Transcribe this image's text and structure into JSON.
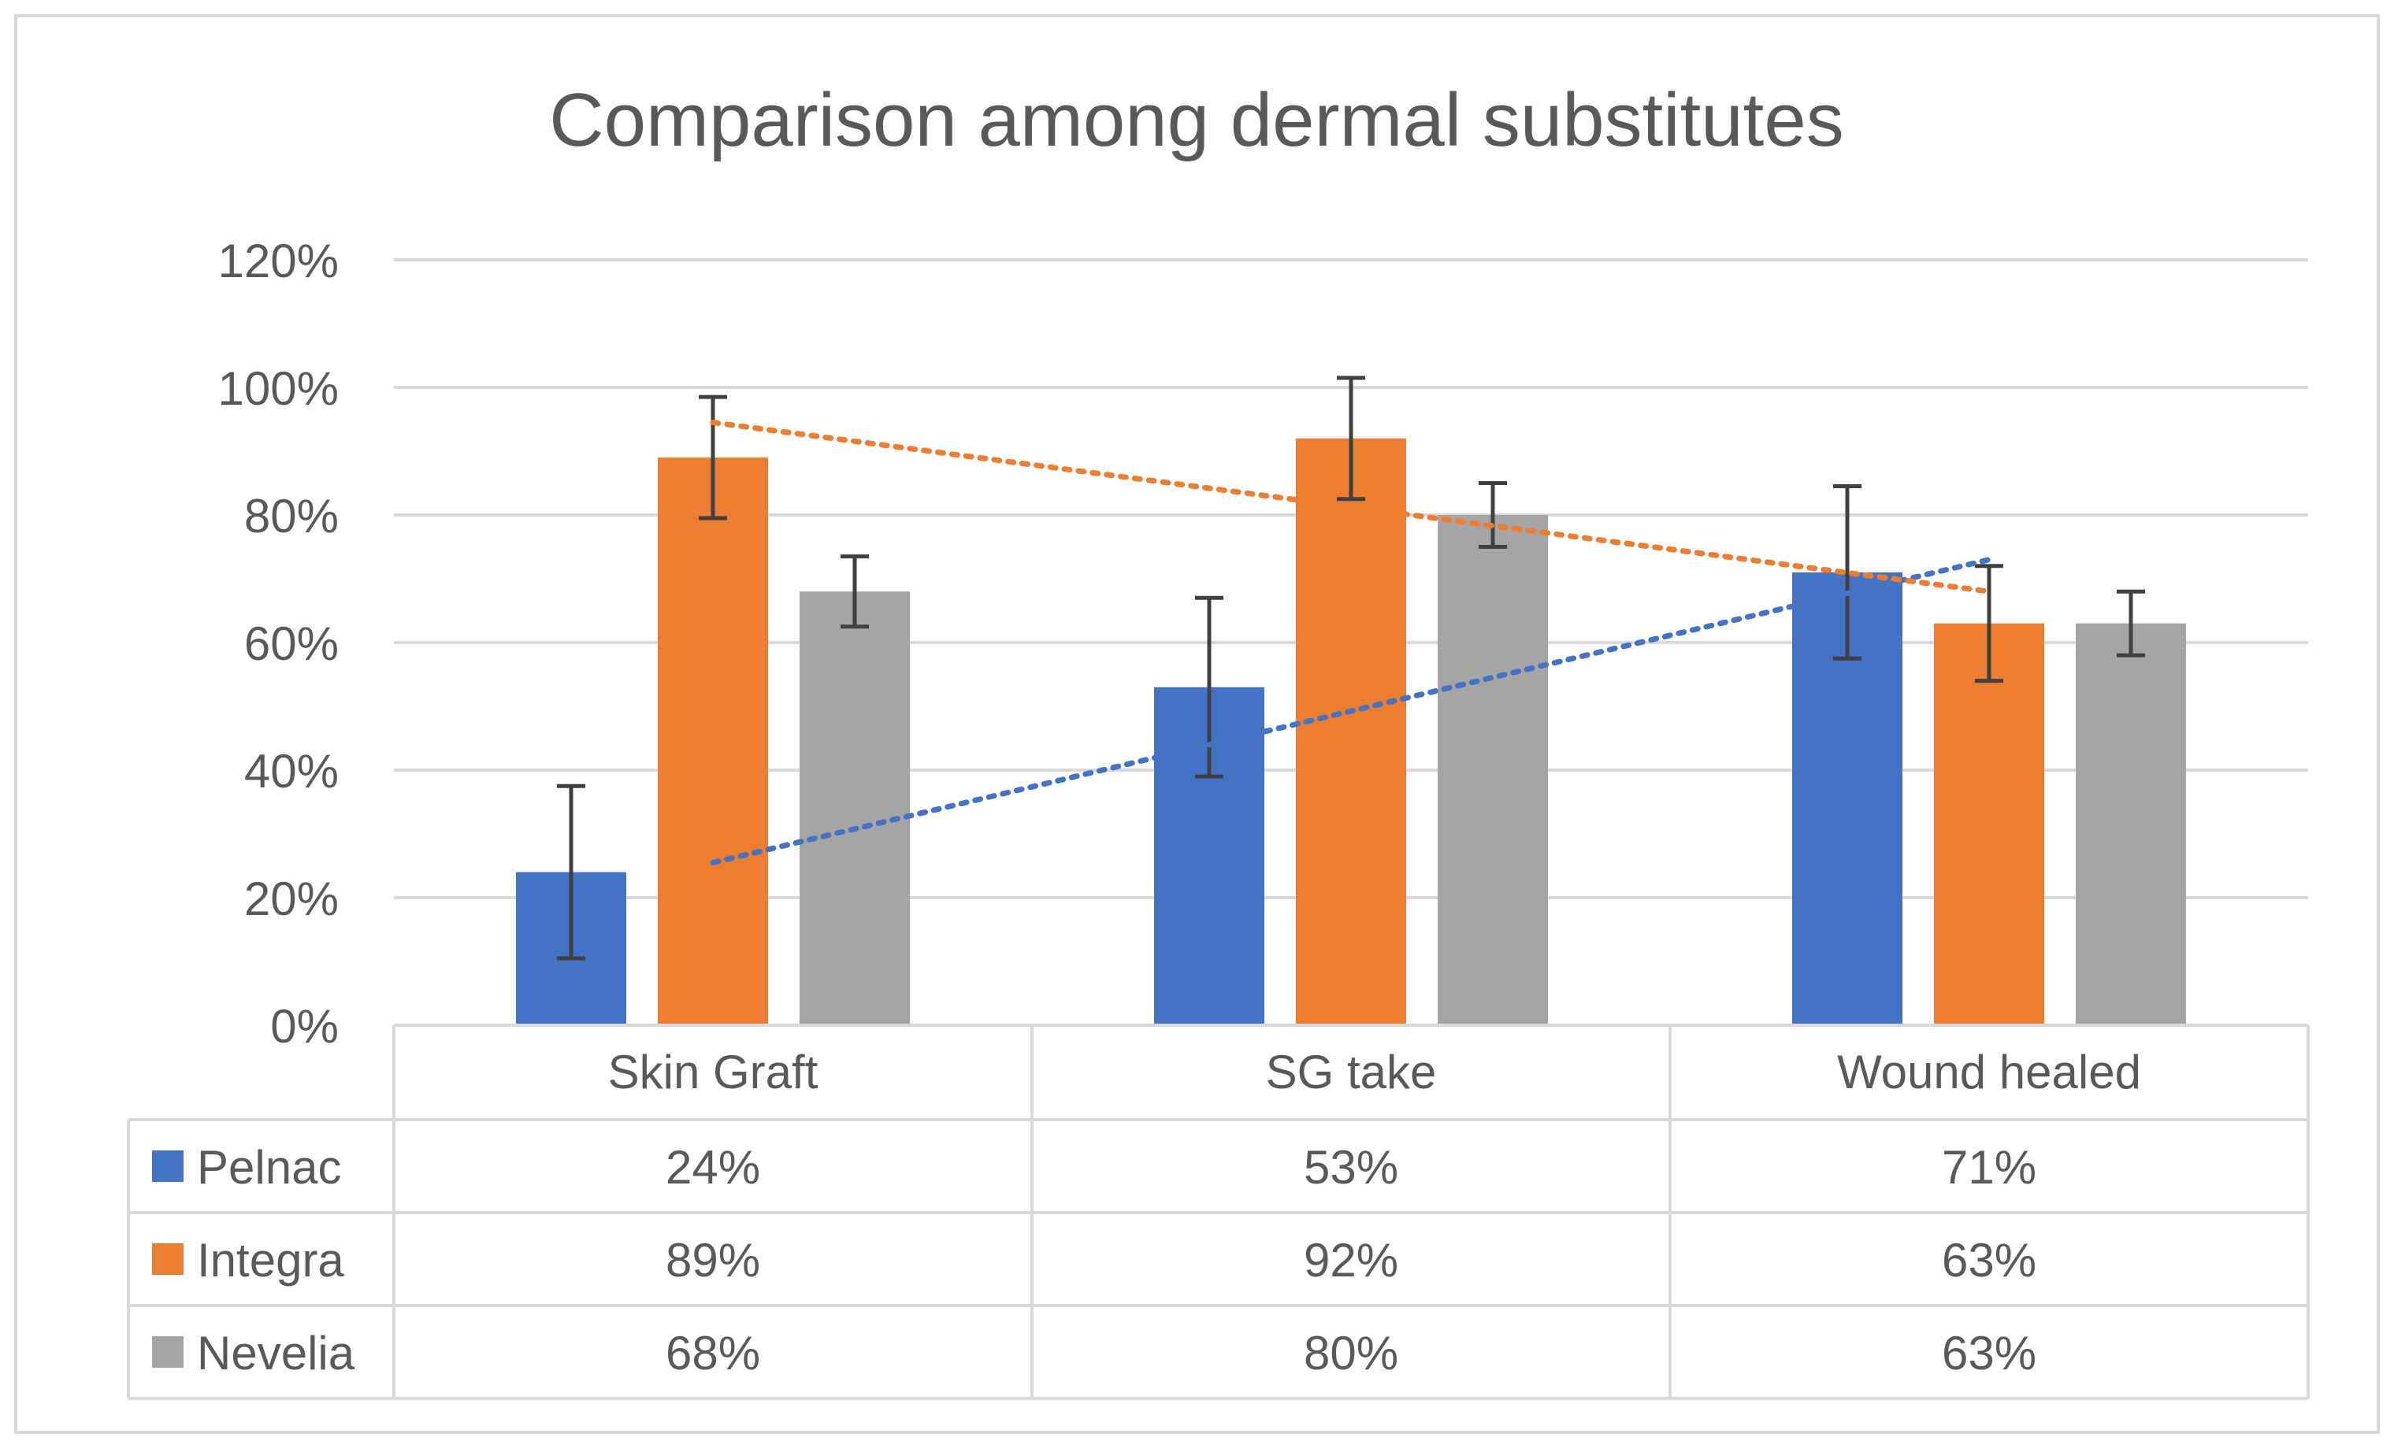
{
  "chart_data": {
    "type": "bar",
    "title": "Comparison among dermal substitutes",
    "xlabel": "",
    "ylabel": "",
    "categories": [
      "Skin Graft",
      "SG take",
      "Wound healed"
    ],
    "ylim": [
      0,
      1.2
    ],
    "yticks": [
      0,
      0.2,
      0.4,
      0.6,
      0.8,
      1.0,
      1.2
    ],
    "ytick_labels": [
      "0%",
      "20%",
      "40%",
      "60%",
      "80%",
      "100%",
      "120%"
    ],
    "grid": true,
    "legend": "data-table-left",
    "series": [
      {
        "name": "Pelnac",
        "color": "#4472C4",
        "values": [
          0.24,
          0.53,
          0.71
        ],
        "labels": [
          "24%",
          "53%",
          "71%"
        ],
        "error": [
          0.135,
          0.14,
          0.135
        ],
        "trendline": {
          "style": "dotted",
          "color": "#4472C4",
          "from": 0.255,
          "to": 0.73
        }
      },
      {
        "name": "Integra",
        "color": "#ED7D31",
        "values": [
          0.89,
          0.92,
          0.63
        ],
        "labels": [
          "89%",
          "92%",
          "63%"
        ],
        "error": [
          0.095,
          0.095,
          0.09
        ],
        "trendline": {
          "style": "dotted",
          "color": "#ED7D31",
          "from": 0.945,
          "to": 0.68
        }
      },
      {
        "name": "Nevelia",
        "color": "#A5A5A5",
        "values": [
          0.68,
          0.8,
          0.63
        ],
        "labels": [
          "68%",
          "80%",
          "63%"
        ],
        "error": [
          0.055,
          0.05,
          0.05
        ]
      }
    ]
  }
}
